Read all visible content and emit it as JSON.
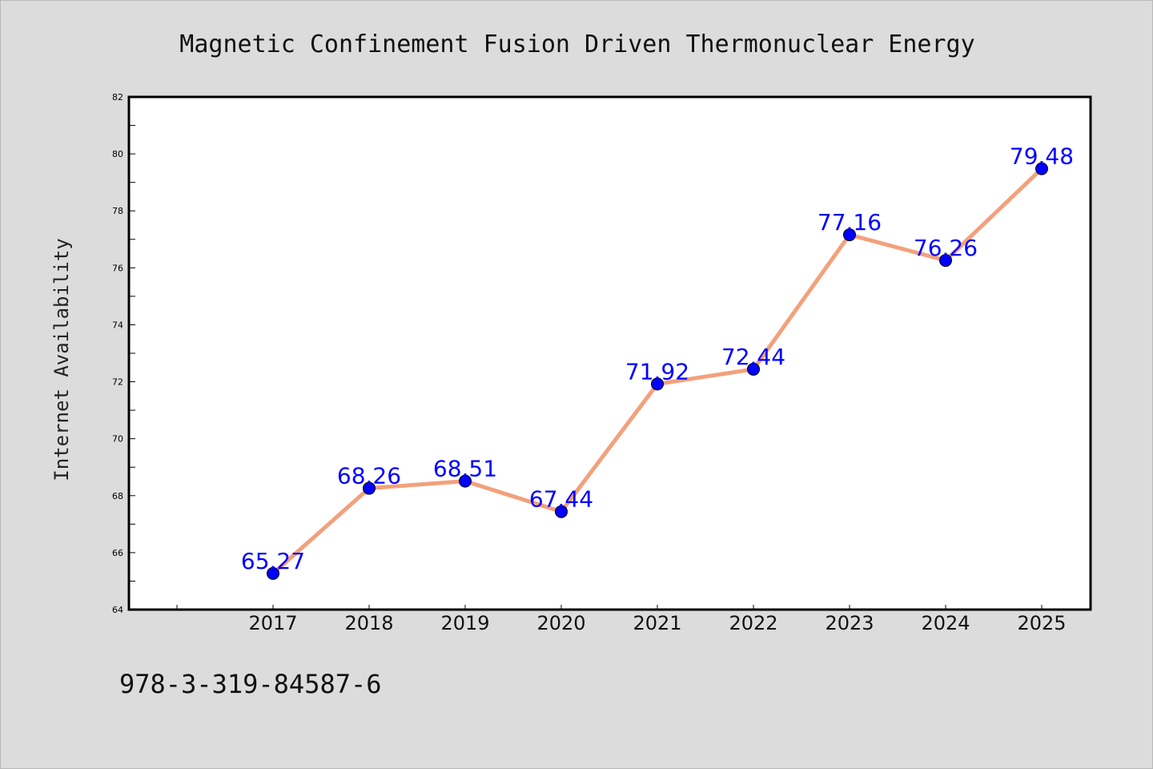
{
  "chart_data": {
    "type": "line",
    "title": "Magnetic Confinement Fusion Driven Thermonuclear Energy",
    "xlabel": "",
    "ylabel": "Internet Availability",
    "x": [
      "2017",
      "2018",
      "2019",
      "2020",
      "2021",
      "2022",
      "2023",
      "2024",
      "2025"
    ],
    "series": [
      {
        "values": [
          65.27,
          68.26,
          68.51,
          67.44,
          71.92,
          72.44,
          77.16,
          76.26,
          79.48
        ],
        "labels": [
          "65.27",
          "68.26",
          "68.51",
          "67.44",
          "71.92",
          "72.44",
          "77.16",
          "76.26",
          "79.48"
        ],
        "line_color": "#f4a07c",
        "marker_color": "#0000ff"
      }
    ],
    "ylim": [
      64,
      82
    ],
    "yticks": [
      "64",
      "66",
      "68",
      "70",
      "72",
      "74",
      "76",
      "78",
      "80",
      "82"
    ],
    "grid": false,
    "legend": "none"
  },
  "footnote": "978-3-319-84587-6"
}
